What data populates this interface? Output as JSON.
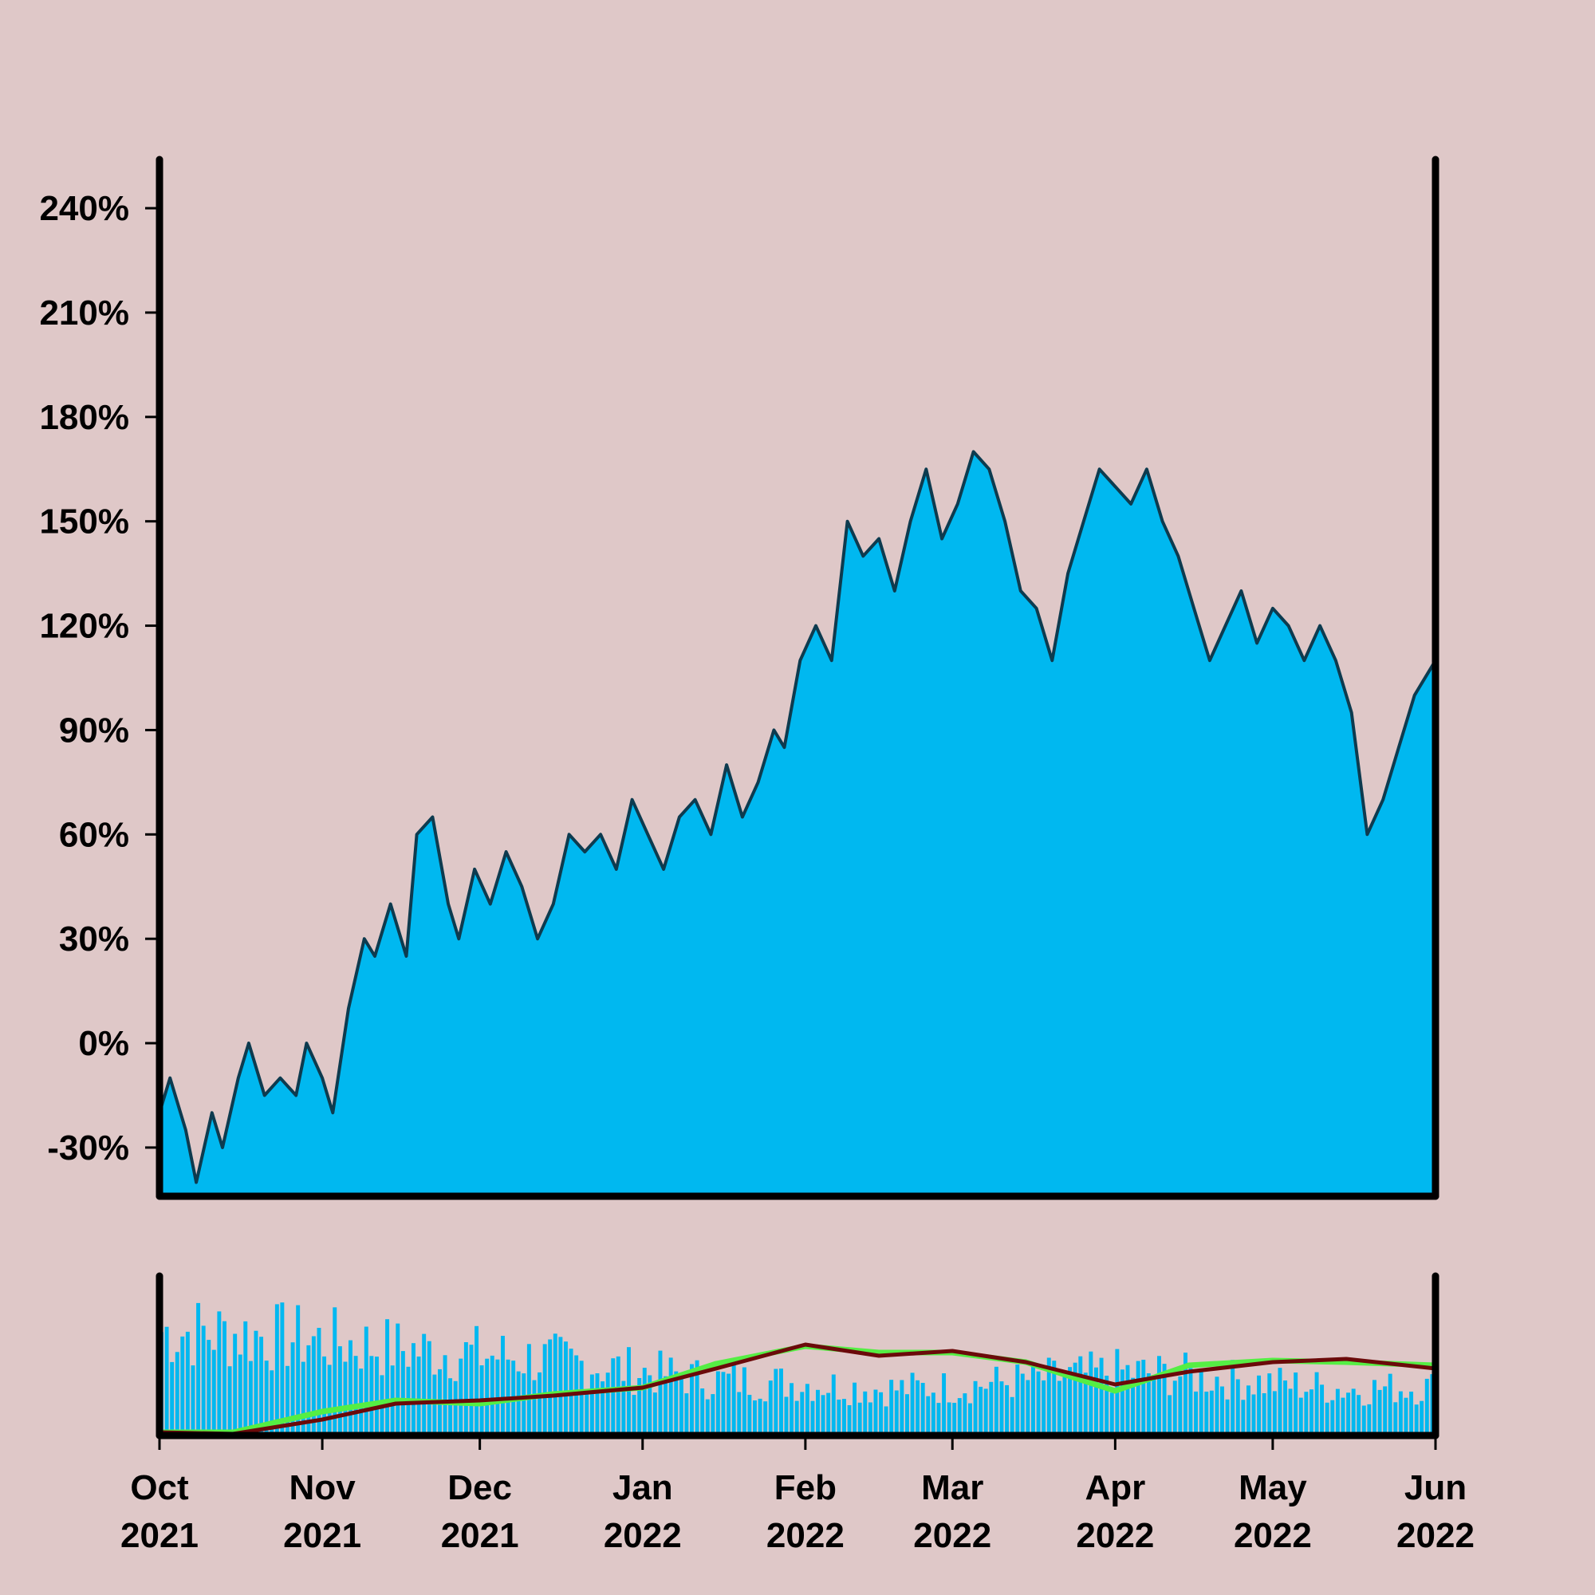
{
  "colors": {
    "background": "#dfc8c8",
    "area_fill": "#00b8f0",
    "area_line": "#0d3b4f",
    "volume_bars": "#00b8f0",
    "ma_short": "#55ee44",
    "ma_long": "#6b0a0a",
    "axes": "#000000"
  },
  "chart_data": [
    {
      "type": "area",
      "panel": "main",
      "title": "",
      "xlabel": "",
      "ylabel": "",
      "y_unit": "%",
      "ylim": [
        -44,
        254
      ],
      "y_ticks": [
        -30,
        0,
        30,
        60,
        90,
        120,
        150,
        180,
        210,
        240
      ],
      "y_tick_labels": [
        "-30%",
        "0%",
        "30%",
        "60%",
        "90%",
        "120%",
        "150%",
        "180%",
        "210%",
        "240%"
      ],
      "x_range": [
        "2021-10-01",
        "2022-06-01"
      ],
      "grid": false,
      "legend": "none",
      "series": [
        {
          "x": [
            "2021-10-01",
            "2021-10-03",
            "2021-10-06",
            "2021-10-08",
            "2021-10-11",
            "2021-10-13",
            "2021-10-16",
            "2021-10-18",
            "2021-10-21",
            "2021-10-24",
            "2021-10-27",
            "2021-10-29",
            "2021-11-01",
            "2021-11-03",
            "2021-11-06",
            "2021-11-09",
            "2021-11-11",
            "2021-11-14",
            "2021-11-17",
            "2021-11-19",
            "2021-11-22",
            "2021-11-25",
            "2021-11-27",
            "2021-11-30",
            "2021-12-03",
            "2021-12-06",
            "2021-12-09",
            "2021-12-12",
            "2021-12-15",
            "2021-12-18",
            "2021-12-21",
            "2021-12-24",
            "2021-12-27",
            "2021-12-30",
            "2022-01-02",
            "2022-01-05",
            "2022-01-08",
            "2022-01-11",
            "2022-01-14",
            "2022-01-17",
            "2022-01-20",
            "2022-01-23",
            "2022-01-26",
            "2022-01-28",
            "2022-01-31",
            "2022-02-03",
            "2022-02-06",
            "2022-02-09",
            "2022-02-12",
            "2022-02-15",
            "2022-02-18",
            "2022-02-21",
            "2022-02-24",
            "2022-02-27",
            "2022-03-02",
            "2022-03-05",
            "2022-03-08",
            "2022-03-11",
            "2022-03-14",
            "2022-03-17",
            "2022-03-20",
            "2022-03-23",
            "2022-03-26",
            "2022-03-29",
            "2022-04-01",
            "2022-04-04",
            "2022-04-07",
            "2022-04-10",
            "2022-04-13",
            "2022-04-16",
            "2022-04-19",
            "2022-04-22",
            "2022-04-25",
            "2022-04-28",
            "2022-05-01",
            "2022-05-04",
            "2022-05-07",
            "2022-05-10",
            "2022-05-13",
            "2022-05-16",
            "2022-05-19",
            "2022-05-22",
            "2022-05-25",
            "2022-05-28",
            "2022-06-01"
          ],
          "y": [
            -20,
            -10,
            -25,
            -40,
            -20,
            -30,
            -10,
            0,
            -15,
            -10,
            -15,
            0,
            -10,
            -20,
            10,
            30,
            25,
            40,
            25,
            60,
            65,
            40,
            30,
            50,
            40,
            55,
            45,
            30,
            40,
            60,
            55,
            60,
            50,
            70,
            60,
            50,
            65,
            70,
            60,
            80,
            65,
            75,
            90,
            85,
            110,
            120,
            110,
            150,
            140,
            145,
            130,
            150,
            165,
            145,
            155,
            170,
            165,
            150,
            130,
            125,
            110,
            135,
            150,
            165,
            160,
            155,
            165,
            150,
            140,
            125,
            110,
            120,
            130,
            115,
            125,
            120,
            110,
            120,
            110,
            95,
            60,
            70,
            85,
            100,
            110
          ]
        }
      ]
    },
    {
      "type": "bar",
      "panel": "volume",
      "title": "",
      "xlabel": "",
      "ylabel": "",
      "ylim": [
        0,
        100
      ],
      "x_range": [
        "2021-10-01",
        "2022-06-01"
      ],
      "x_tick_labels": [
        {
          "month": "Oct",
          "year": "2021",
          "date": "2021-10-01"
        },
        {
          "month": "Nov",
          "year": "2021",
          "date": "2021-11-01"
        },
        {
          "month": "Dec",
          "year": "2021",
          "date": "2021-12-01"
        },
        {
          "month": "Jan",
          "year": "2022",
          "date": "2022-01-01"
        },
        {
          "month": "Feb",
          "year": "2022",
          "date": "2022-02-01"
        },
        {
          "month": "Mar",
          "year": "2022",
          "date": "2022-03-01"
        },
        {
          "month": "Apr",
          "year": "2022",
          "date": "2022-04-01"
        },
        {
          "month": "May",
          "year": "2022",
          "date": "2022-05-01"
        },
        {
          "month": "Jun",
          "year": "2022",
          "date": "2022-06-01"
        }
      ],
      "volume_envelope": {
        "x": [
          "2021-10-01",
          "2021-10-15",
          "2021-11-01",
          "2021-11-15",
          "2021-12-01",
          "2021-12-15",
          "2022-01-01",
          "2022-01-15",
          "2022-02-01",
          "2022-02-15",
          "2022-03-01",
          "2022-03-15",
          "2022-04-01",
          "2022-04-15",
          "2022-05-01",
          "2022-05-15",
          "2022-06-01"
        ],
        "y": [
          90,
          88,
          82,
          75,
          70,
          65,
          55,
          48,
          45,
          40,
          42,
          48,
          55,
          52,
          45,
          40,
          42
        ]
      },
      "series": [
        {
          "x": [
            "2021-10-01",
            "2021-10-15",
            "2021-11-01",
            "2021-11-15",
            "2021-12-01",
            "2021-12-15",
            "2022-01-01",
            "2022-01-15",
            "2022-02-01",
            "2022-02-15",
            "2022-03-01",
            "2022-03-15",
            "2022-04-01",
            "2022-04-15",
            "2022-05-01",
            "2022-05-15",
            "2022-06-01"
          ],
          "y": [
            2,
            2,
            15,
            22,
            20,
            26,
            30,
            45,
            56,
            52,
            52,
            46,
            28,
            44,
            47,
            46,
            44
          ]
        },
        {
          "x": [
            "2021-10-01",
            "2021-10-15",
            "2021-11-01",
            "2021-11-15",
            "2021-12-01",
            "2021-12-15",
            "2022-01-01",
            "2022-01-15",
            "2022-02-01",
            "2022-02-15",
            "2022-03-01",
            "2022-03-15",
            "2022-04-01",
            "2022-04-15",
            "2022-05-01",
            "2022-05-15",
            "2022-06-01"
          ],
          "y": [
            2,
            1,
            10,
            20,
            22,
            25,
            30,
            42,
            57,
            50,
            53,
            46,
            32,
            40,
            46,
            48,
            42
          ]
        }
      ]
    }
  ]
}
